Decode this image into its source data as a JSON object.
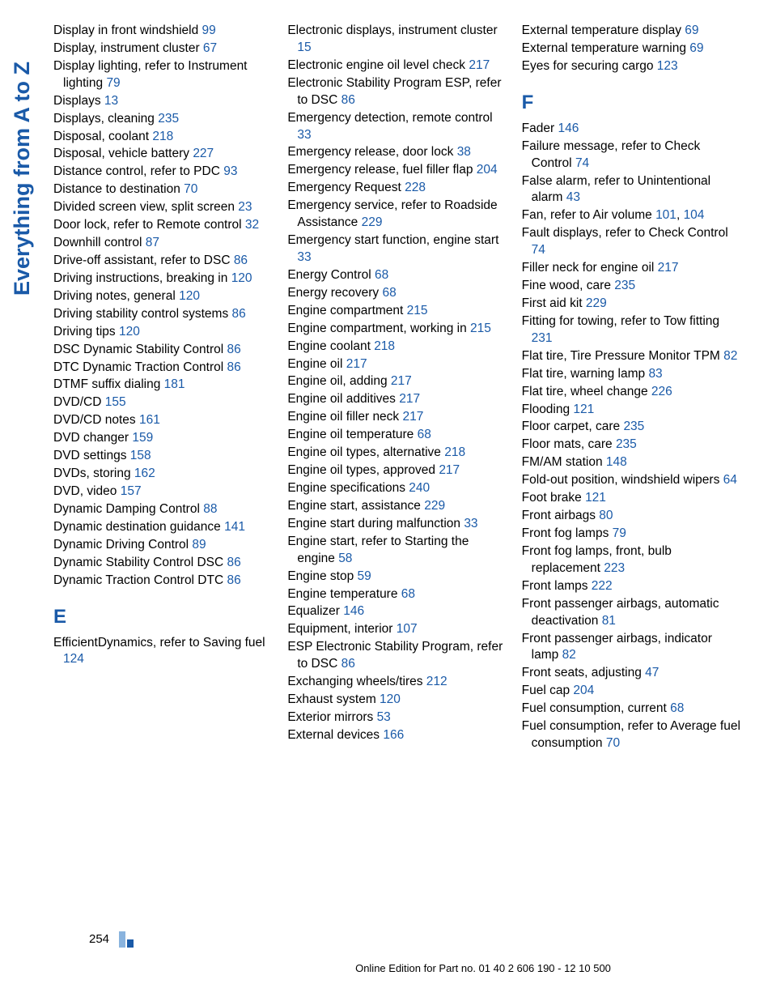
{
  "colors": {
    "link": "#1a5aa8",
    "text": "#000000",
    "tab_bg": "#ffffff",
    "ornament_light": "#89b3de",
    "ornament_dark": "#1a5aa8"
  },
  "sideTab": "Everything from A to Z",
  "pageNumber": "254",
  "footerText": "Online Edition for Part no. 01 40 2 606 190 - 12 10 500",
  "sectionE": "E",
  "sectionF": "F",
  "col1": [
    {
      "text": "Display in front windshield",
      "page": "99"
    },
    {
      "text": "Display, instrument cluster",
      "page": "67"
    },
    {
      "text": "Display lighting, refer to Instrument lighting",
      "page": "79"
    },
    {
      "text": "Displays",
      "page": "13"
    },
    {
      "text": "Displays, cleaning",
      "page": "235"
    },
    {
      "text": "Disposal, coolant",
      "page": "218"
    },
    {
      "text": "Disposal, vehicle battery",
      "page": "227"
    },
    {
      "text": "Distance control, refer to PDC",
      "page": "93"
    },
    {
      "text": "Distance to destination",
      "page": "70"
    },
    {
      "text": "Divided screen view, split screen",
      "page": "23"
    },
    {
      "text": "Door lock, refer to Remote control",
      "page": "32"
    },
    {
      "text": "Downhill control",
      "page": "87"
    },
    {
      "text": "Drive-off assistant, refer to DSC",
      "page": "86"
    },
    {
      "text": "Driving instructions, breaking in",
      "page": "120"
    },
    {
      "text": "Driving notes, general",
      "page": "120"
    },
    {
      "text": "Driving stability control systems",
      "page": "86"
    },
    {
      "text": "Driving tips",
      "page": "120"
    },
    {
      "text": "DSC Dynamic Stability Control",
      "page": "86"
    },
    {
      "text": "DTC Dynamic Traction Control",
      "page": "86"
    },
    {
      "text": "DTMF suffix dialing",
      "page": "181"
    },
    {
      "text": "DVD/CD",
      "page": "155"
    },
    {
      "text": "DVD/CD notes",
      "page": "161"
    },
    {
      "text": "DVD changer",
      "page": "159"
    },
    {
      "text": "DVD settings",
      "page": "158"
    },
    {
      "text": "DVDs, storing",
      "page": "162"
    },
    {
      "text": "DVD, video",
      "page": "157"
    },
    {
      "text": "Dynamic Damping Control",
      "page": "88"
    },
    {
      "text": "Dynamic destination guidance",
      "page": "141"
    },
    {
      "text": "Dynamic Driving Control",
      "page": "89"
    },
    {
      "text": "Dynamic Stability Control DSC",
      "page": "86"
    },
    {
      "text": "Dynamic Traction Control DTC",
      "page": "86"
    }
  ],
  "col1_E": [
    {
      "text": "EfficientDynamics, refer to Saving fuel",
      "page": "124"
    }
  ],
  "col2": [
    {
      "text": "Electronic displays, instrument cluster",
      "page": "15"
    },
    {
      "text": "Electronic engine oil level check",
      "page": "217"
    },
    {
      "text": "Electronic Stability Program ESP, refer to DSC",
      "page": "86"
    },
    {
      "text": "Emergency detection, remote control",
      "page": "33"
    },
    {
      "text": "Emergency release, door lock",
      "page": "38"
    },
    {
      "text": "Emergency release, fuel filler flap",
      "page": "204"
    },
    {
      "text": "Emergency Request",
      "page": "228"
    },
    {
      "text": "Emergency service, refer to Roadside Assistance",
      "page": "229"
    },
    {
      "text": "Emergency start function, engine start",
      "page": "33"
    },
    {
      "text": "Energy Control",
      "page": "68"
    },
    {
      "text": "Energy recovery",
      "page": "68"
    },
    {
      "text": "Engine compartment",
      "page": "215"
    },
    {
      "text": "Engine compartment, working in",
      "page": "215"
    },
    {
      "text": "Engine coolant",
      "page": "218"
    },
    {
      "text": "Engine oil",
      "page": "217"
    },
    {
      "text": "Engine oil, adding",
      "page": "217"
    },
    {
      "text": "Engine oil additives",
      "page": "217"
    },
    {
      "text": "Engine oil filler neck",
      "page": "217"
    },
    {
      "text": "Engine oil temperature",
      "page": "68"
    },
    {
      "text": "Engine oil types, alternative",
      "page": "218"
    },
    {
      "text": "Engine oil types, approved",
      "page": "217"
    },
    {
      "text": "Engine specifications",
      "page": "240"
    },
    {
      "text": "Engine start, assistance",
      "page": "229"
    },
    {
      "text": "Engine start during malfunction",
      "page": "33"
    },
    {
      "text": "Engine start, refer to Starting the engine",
      "page": "58"
    },
    {
      "text": "Engine stop",
      "page": "59"
    },
    {
      "text": "Engine temperature",
      "page": "68"
    },
    {
      "text": "Equalizer",
      "page": "146"
    },
    {
      "text": "Equipment, interior",
      "page": "107"
    },
    {
      "text": "ESP Electronic Stability Program, refer to DSC",
      "page": "86"
    },
    {
      "text": "Exchanging wheels/tires",
      "page": "212"
    },
    {
      "text": "Exhaust system",
      "page": "120"
    },
    {
      "text": "Exterior mirrors",
      "page": "53"
    },
    {
      "text": "External devices",
      "page": "166"
    }
  ],
  "col3_top": [
    {
      "text": "External temperature display",
      "page": "69"
    },
    {
      "text": "External temperature warning",
      "page": "69"
    },
    {
      "text": "Eyes for securing cargo",
      "page": "123"
    }
  ],
  "col3_F": [
    {
      "text": "Fader",
      "page": "146"
    },
    {
      "text": "Failure message, refer to Check Control",
      "page": "74"
    },
    {
      "text": "False alarm, refer to Unintentional alarm",
      "page": "43"
    },
    {
      "text": "Fan, refer to Air volume",
      "page": "101, 104"
    },
    {
      "text": "Fault displays, refer to Check Control",
      "page": "74"
    },
    {
      "text": "Filler neck for engine oil",
      "page": "217"
    },
    {
      "text": "Fine wood, care",
      "page": "235"
    },
    {
      "text": "First aid kit",
      "page": "229"
    },
    {
      "text": "Fitting for towing, refer to Tow fitting",
      "page": "231"
    },
    {
      "text": "Flat tire, Tire Pressure Monitor TPM",
      "page": "82"
    },
    {
      "text": "Flat tire, warning lamp",
      "page": "83"
    },
    {
      "text": "Flat tire, wheel change",
      "page": "226"
    },
    {
      "text": "Flooding",
      "page": "121"
    },
    {
      "text": "Floor carpet, care",
      "page": "235"
    },
    {
      "text": "Floor mats, care",
      "page": "235"
    },
    {
      "text": "FM/AM station",
      "page": "148"
    },
    {
      "text": "Fold-out position, windshield wipers",
      "page": "64"
    },
    {
      "text": "Foot brake",
      "page": "121"
    },
    {
      "text": "Front airbags",
      "page": "80"
    },
    {
      "text": "Front fog lamps",
      "page": "79"
    },
    {
      "text": "Front fog lamps, front, bulb replacement",
      "page": "223"
    },
    {
      "text": "Front lamps",
      "page": "222"
    },
    {
      "text": "Front passenger airbags, automatic deactivation",
      "page": "81"
    },
    {
      "text": "Front passenger airbags, indicator lamp",
      "page": "82"
    },
    {
      "text": "Front seats, adjusting",
      "page": "47"
    },
    {
      "text": "Fuel cap",
      "page": "204"
    },
    {
      "text": "Fuel consumption, current",
      "page": "68"
    },
    {
      "text": "Fuel consumption, refer to Average fuel consumption",
      "page": "70"
    }
  ]
}
